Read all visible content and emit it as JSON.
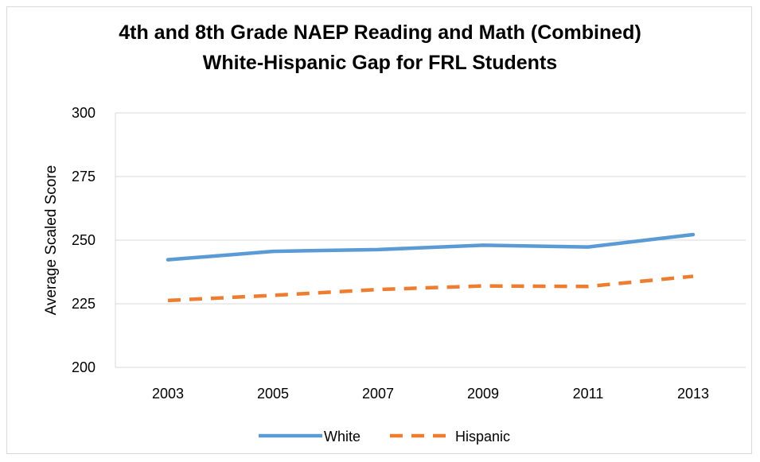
{
  "chart_data": {
    "type": "line",
    "title_line1": "4th and 8th Grade NAEP Reading and Math (Combined)",
    "title_line2": "White-Hispanic Gap for FRL Students",
    "xlabel": "",
    "ylabel": "Average Scaled Score",
    "categories": [
      "2003",
      "2005",
      "2007",
      "2009",
      "2011",
      "2013"
    ],
    "ylim": [
      200,
      300
    ],
    "yticks": [
      "200",
      "225",
      "250",
      "275",
      "300"
    ],
    "grid": true,
    "legend_position": "bottom",
    "series": [
      {
        "name": "White",
        "values": [
          242.3,
          245.6,
          246.3,
          248.0,
          247.3,
          252.2
        ],
        "color": "#5b9bd5",
        "style": "solid"
      },
      {
        "name": "Hispanic",
        "values": [
          226.3,
          228.3,
          230.6,
          232.0,
          231.8,
          235.8
        ],
        "color": "#ed7d31",
        "style": "dashed"
      }
    ]
  }
}
